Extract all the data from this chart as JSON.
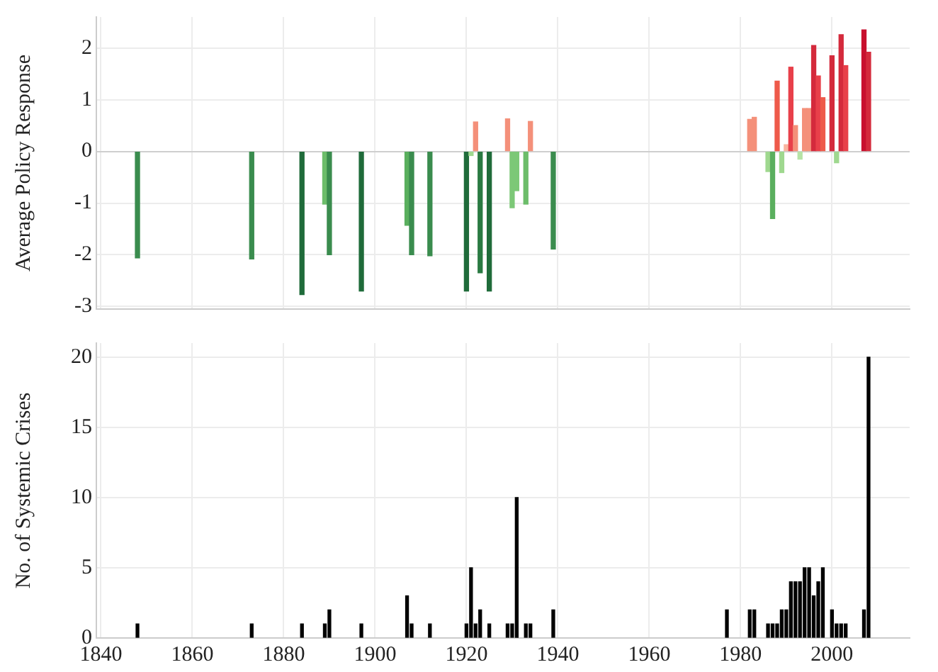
{
  "chart_data": [
    {
      "type": "bar",
      "ylabel": "Average Policy Response",
      "x": [
        1848,
        1873,
        1884,
        1889,
        1890,
        1897,
        1907,
        1908,
        1912,
        1920,
        1921,
        1922,
        1923,
        1925,
        1929,
        1930,
        1931,
        1933,
        1934,
        1939,
        1982,
        1983,
        1986,
        1987,
        1988,
        1989,
        1990,
        1991,
        1992,
        1993,
        1994,
        1995,
        1996,
        1997,
        1998,
        2000,
        2001,
        2002,
        2003,
        2007,
        2008
      ],
      "values": [
        -2.06,
        -2.08,
        -2.77,
        -1.02,
        -2.0,
        -2.7,
        -1.43,
        -2.0,
        -2.02,
        -2.7,
        -0.08,
        0.57,
        -2.35,
        -2.7,
        0.63,
        -1.09,
        -0.76,
        -1.02,
        0.58,
        -1.89,
        0.62,
        0.66,
        -0.39,
        -1.3,
        1.36,
        -0.41,
        0.13,
        1.63,
        0.5,
        -0.15,
        0.83,
        0.83,
        2.05,
        1.46,
        1.04,
        1.85,
        -0.22,
        2.26,
        1.66,
        2.35,
        1.92
      ],
      "colors": [
        "#3a8c4e",
        "#3a8c4e",
        "#1f6b3a",
        "#6cbd6a",
        "#3a8c4e",
        "#1f6b3a",
        "#5aaf5e",
        "#3a8c4e",
        "#3a8c4e",
        "#1f6b3a",
        "#9fd88f",
        "#f4907a",
        "#2a7a42",
        "#1f6b3a",
        "#f4907a",
        "#7cc877",
        "#7cc877",
        "#6cbd6a",
        "#f4907a",
        "#3a8c4e",
        "#f4907a",
        "#f4907a",
        "#9fd88f",
        "#5aaf5e",
        "#ee5a4a",
        "#9fd88f",
        "#f9b49f",
        "#e8404a",
        "#f4907a",
        "#b6e3a6",
        "#f4907a",
        "#f4907a",
        "#d42a3c",
        "#e8404a",
        "#ee5a4a",
        "#d42a3c",
        "#9fd88f",
        "#d42a3c",
        "#e8404a",
        "#c8102e",
        "#d42a3c"
      ],
      "xlim": [
        1839,
        2017
      ],
      "xticks": [
        1840,
        1860,
        1880,
        1900,
        1920,
        1940,
        1960,
        1980,
        2000
      ],
      "ylim": [
        -3.05,
        2.6
      ],
      "yticks": [
        -3,
        -2,
        -1,
        0,
        1,
        2
      ],
      "grid": true,
      "tick_labels": "y"
    },
    {
      "type": "bar",
      "ylabel": "No. of Systemic Crises",
      "x": [
        1848,
        1873,
        1884,
        1889,
        1890,
        1897,
        1907,
        1908,
        1912,
        1920,
        1921,
        1922,
        1923,
        1925,
        1929,
        1930,
        1931,
        1933,
        1934,
        1939,
        1977,
        1982,
        1983,
        1986,
        1987,
        1988,
        1989,
        1990,
        1991,
        1992,
        1993,
        1994,
        1995,
        1996,
        1997,
        1998,
        2000,
        2001,
        2002,
        2003,
        2007,
        2008
      ],
      "values": [
        1,
        1,
        1,
        1,
        2,
        1,
        3,
        1,
        1,
        1,
        5,
        1,
        2,
        1,
        1,
        1,
        10,
        1,
        1,
        2,
        2,
        2,
        2,
        1,
        1,
        1,
        2,
        2,
        4,
        4,
        4,
        5,
        5,
        3,
        4,
        5,
        2,
        1,
        1,
        1,
        2,
        20
      ],
      "color": "#000000",
      "xlim": [
        1839,
        2017
      ],
      "xticks": [
        1840,
        1860,
        1880,
        1900,
        1920,
        1940,
        1960,
        1980,
        2000
      ],
      "ylim": [
        0,
        21
      ],
      "yticks": [
        0,
        5,
        10,
        15,
        20
      ],
      "grid": true
    }
  ]
}
